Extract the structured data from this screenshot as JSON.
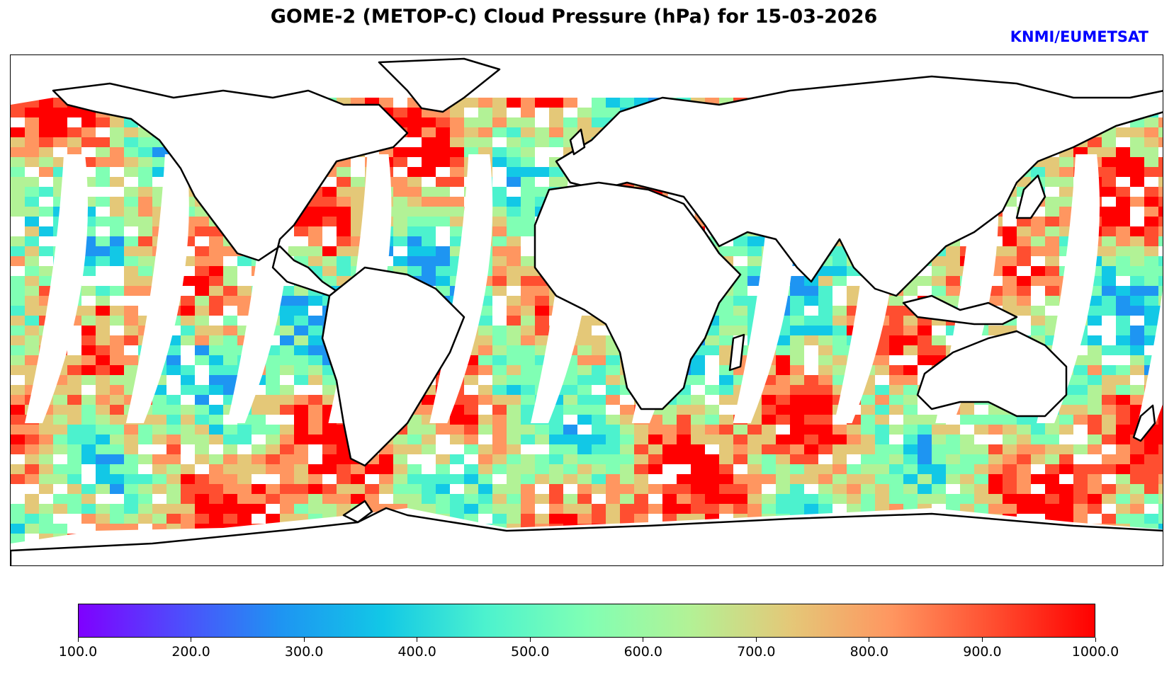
{
  "title": "GOME-2 (METOP-C) Cloud Pressure (hPa) for 15-03-2026",
  "credit": "KNMI/EUMETSAT",
  "colors": {
    "credit": "#0000ff",
    "coastline": "#000000",
    "no_data": "#ffffff"
  },
  "map": {
    "projection": "plate-carree",
    "variable": "Cloud Pressure",
    "units": "hPa",
    "date": "15-03-2026",
    "instrument": "GOME-2",
    "platform": "METOP-C",
    "lon_range": [
      -180,
      180
    ],
    "lat_range": [
      -90,
      90
    ],
    "orbit_gap_count": 14
  },
  "colorbar": {
    "colormap": "rainbow",
    "vmin": 100.0,
    "vmax": 1000.0,
    "stops": [
      "#7f00ff",
      "#4e4dfc",
      "#1e95f2",
      "#12c8e6",
      "#4cf2ce",
      "#80ffb4",
      "#b2f296",
      "#e4c878",
      "#ff9660",
      "#ff4e30",
      "#ff0000"
    ],
    "ticks": [
      "100.0",
      "200.0",
      "300.0",
      "400.0",
      "500.0",
      "600.0",
      "700.0",
      "800.0",
      "900.0",
      "1000.0"
    ]
  }
}
